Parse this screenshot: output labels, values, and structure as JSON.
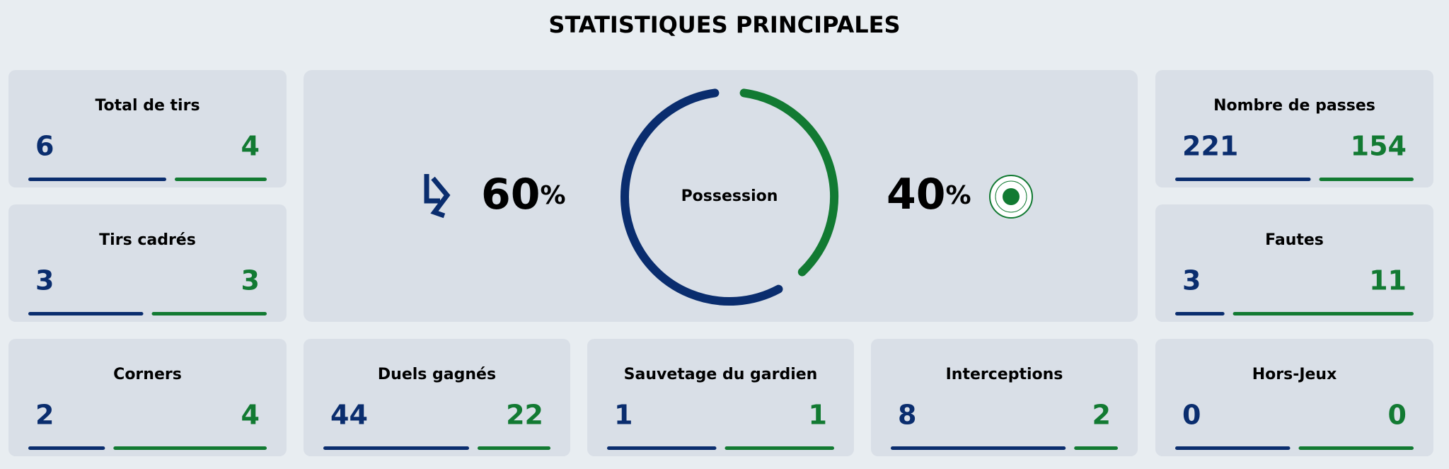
{
  "header": {
    "title": "STATISTIQUES PRINCIPALES"
  },
  "possession": {
    "label": "Possession",
    "home": 60,
    "away": 40,
    "unit": "%",
    "home_color": "#0a2d6e",
    "away_color": "#127a32"
  },
  "stats": [
    {
      "label": "Total de tirs",
      "home": 6,
      "away": 4
    },
    {
      "label": "Nombre de passes",
      "home": 221,
      "away": 154
    },
    {
      "label": "Tirs cadrés",
      "home": 3,
      "away": 3
    },
    {
      "label": "Fautes",
      "home": 3,
      "away": 11
    },
    {
      "label": "Corners",
      "home": 2,
      "away": 4
    },
    {
      "label": "Duels gagnés",
      "home": 44,
      "away": 22
    },
    {
      "label": "Sauvetage du gardien",
      "home": 1,
      "away": 1
    },
    {
      "label": "Interceptions",
      "home": 8,
      "away": 2
    },
    {
      "label": "Hors-Jeux",
      "home": 0,
      "away": 0
    }
  ]
}
